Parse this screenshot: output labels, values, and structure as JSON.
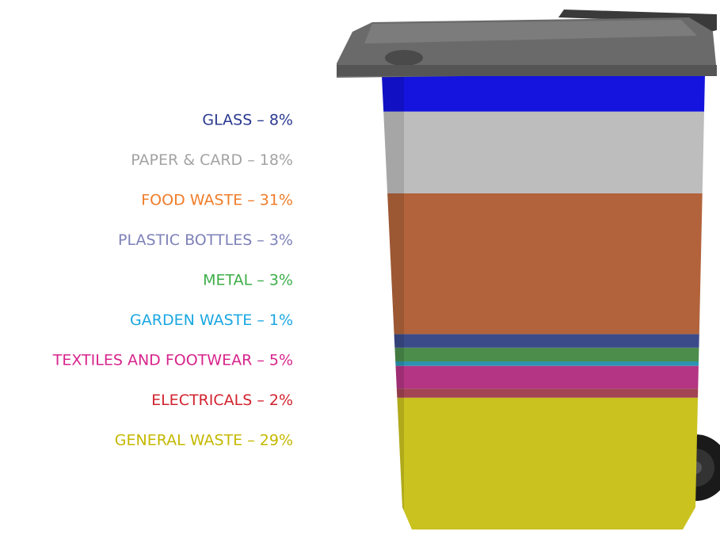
{
  "chart_data": {
    "type": "bin",
    "categories": [
      "GLASS – 8%",
      "PAPER & CARD – 18%",
      "FOOD WASTE – 31%",
      "PLASTIC BOTTLES – 3%",
      "METAL – 3%",
      "GARDEN WASTE – 1%",
      "TEXTILES AND FOOTWEAR – 5%",
      "ELECTRICALS – 2%",
      "GENERAL WASTE – 29%"
    ],
    "values": [
      8,
      18,
      31,
      3,
      3,
      1,
      5,
      2,
      29
    ],
    "colors": [
      "#2b3990",
      "#a3a3a3",
      "#ef7d2b",
      "#7e81b8",
      "#3fae49",
      "#1aa7e1",
      "#d7258c",
      "#d2232f",
      "#c4b800"
    ],
    "band_colors": [
      "#1414de",
      "#bdbdbd",
      "#b2633b",
      "#3b4b8a",
      "#4c8d4c",
      "#2c93b2",
      "#b33584",
      "#a34454",
      "#c9c21f"
    ]
  }
}
